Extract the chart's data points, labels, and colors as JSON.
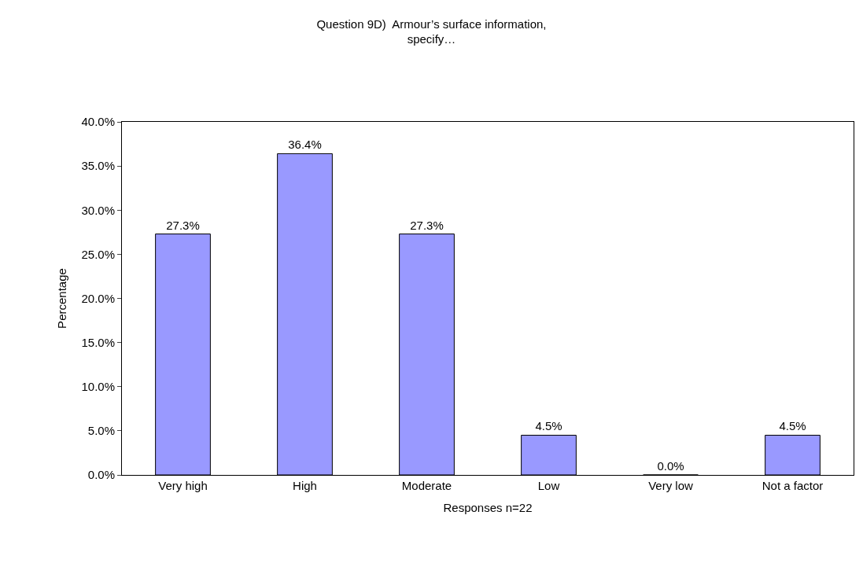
{
  "chart_data": {
    "type": "bar",
    "title": "Question 9D)  Armour’s surface information,\nspecify…",
    "xlabel": "Responses n=22",
    "ylabel": "Percentage",
    "categories": [
      "Very high",
      "High",
      "Moderate",
      "Low",
      "Very low",
      "Not a factor"
    ],
    "values": [
      27.3,
      36.4,
      27.3,
      4.5,
      0.0,
      4.5
    ],
    "value_labels": [
      "27.3%",
      "36.4%",
      "27.3%",
      "4.5%",
      "0.0%",
      "4.5%"
    ],
    "color": "#9999ff",
    "ylim": [
      0,
      40
    ],
    "yticks": [
      {
        "value": 0,
        "label": "0.0%"
      },
      {
        "value": 5,
        "label": "5.0%"
      },
      {
        "value": 10,
        "label": "10.0%"
      },
      {
        "value": 15,
        "label": "15.0%"
      },
      {
        "value": 20,
        "label": "20.0%"
      },
      {
        "value": 25,
        "label": "25.0%"
      },
      {
        "value": 30,
        "label": "30.0%"
      },
      {
        "value": 35,
        "label": "35.0%"
      },
      {
        "value": 40,
        "label": "40.0%"
      }
    ],
    "grid": false,
    "legend": false
  }
}
